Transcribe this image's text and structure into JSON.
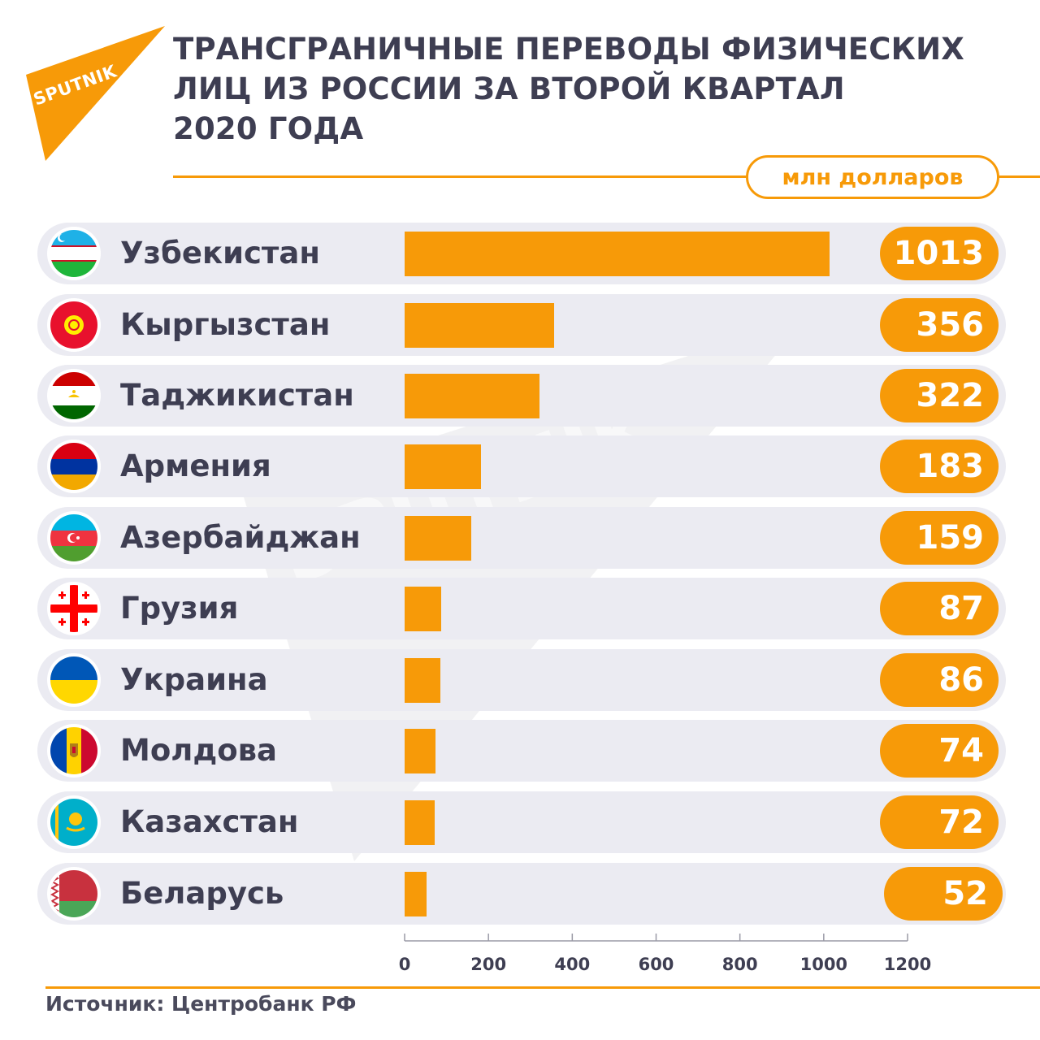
{
  "brand": {
    "name": "SPUTNIK",
    "color": "#f79a08"
  },
  "title_lines": [
    "ТРАНСГРАНИЧНЫЕ ПЕРЕВОДЫ ФИЗИЧЕСКИХ",
    "ЛИЦ ИЗ РОССИИ ЗА ВТОРОЙ КВАРТАЛ",
    "2020 ГОДА"
  ],
  "unit_label": "млн долларов",
  "source": "Источник: Центробанк РФ",
  "colors": {
    "accent": "#f79a08",
    "text": "#3e3e52",
    "row_bg": "#ebebf2"
  },
  "chart_data": {
    "type": "bar",
    "orientation": "horizontal",
    "title": "ТРАНСГРАНИЧНЫЕ ПЕРЕВОДЫ ФИЗИЧЕСКИХ ЛИЦ ИЗ РОССИИ ЗА ВТОРОЙ КВАРТАЛ 2020 ГОДА",
    "unit": "млн долларов",
    "categories": [
      "Узбекистан",
      "Кыргызстан",
      "Таджикистан",
      "Армения",
      "Азербайджан",
      "Грузия",
      "Украина",
      "Молдова",
      "Казахстан",
      "Беларусь"
    ],
    "values": [
      1013,
      356,
      322,
      183,
      159,
      87,
      86,
      74,
      72,
      52
    ],
    "value_labels": [
      "1013",
      "356",
      "322",
      "183",
      "159",
      "87",
      "86",
      "74",
      "72",
      "52"
    ],
    "flag_icons": [
      "uzbekistan-flag-icon",
      "kyrgyzstan-flag-icon",
      "tajikistan-flag-icon",
      "armenia-flag-icon",
      "azerbaijan-flag-icon",
      "georgia-flag-icon",
      "ukraine-flag-icon",
      "moldova-flag-icon",
      "kazakhstan-flag-icon",
      "belarus-flag-icon"
    ],
    "xlim": [
      0,
      1200
    ],
    "x_ticks": [
      0,
      200,
      400,
      600,
      800,
      1000,
      1200
    ],
    "x_tick_labels": [
      "0",
      "200",
      "400",
      "600",
      "800",
      "1000",
      "1200"
    ],
    "grid": false,
    "legend": "none"
  }
}
